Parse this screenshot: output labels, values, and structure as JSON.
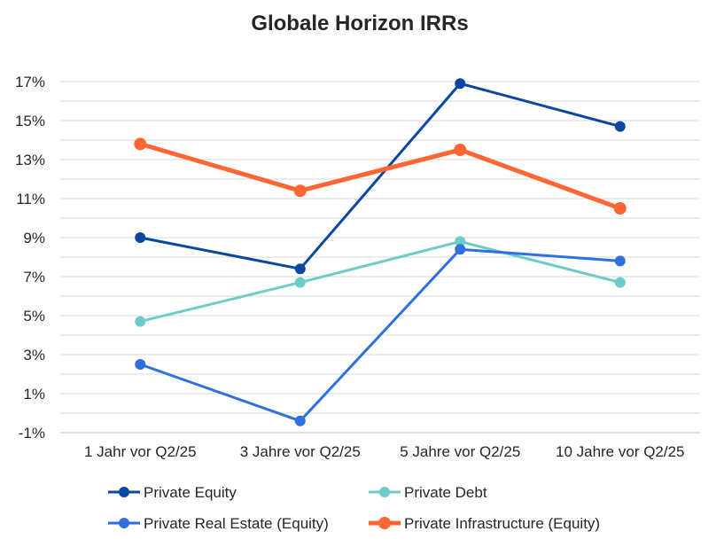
{
  "chart_data": {
    "type": "line",
    "title": "Globale Horizon IRRs",
    "xlabel": "",
    "ylabel": "",
    "categories": [
      "1 Jahr vor Q2/25",
      "3 Jahre vor Q2/25",
      "5 Jahre vor Q2/25",
      "10 Jahre vor Q2/25"
    ],
    "ylim": [
      -1,
      18
    ],
    "y_ticks": [
      -1,
      1,
      3,
      5,
      7,
      9,
      11,
      13,
      15,
      17
    ],
    "y_tick_labels": [
      "-1%",
      "1%",
      "3%",
      "5%",
      "7%",
      "9%",
      "11%",
      "13%",
      "15%",
      "17%"
    ],
    "grid": true,
    "legend_position": "bottom",
    "series": [
      {
        "name": "Private Equity",
        "values": [
          9.0,
          7.4,
          16.9,
          14.7
        ],
        "color": "#0a47a1",
        "stroke": 3,
        "marker": 6
      },
      {
        "name": "Private Debt",
        "values": [
          4.7,
          6.7,
          8.8,
          6.7
        ],
        "color": "#6ccdc8",
        "stroke": 3,
        "marker": 6
      },
      {
        "name": "Private Real Estate (Equity)",
        "values": [
          2.5,
          -0.4,
          8.4,
          7.8
        ],
        "color": "#2f6fe0",
        "stroke": 3,
        "marker": 6
      },
      {
        "name": "Private Infrastructure (Equity)",
        "values": [
          13.8,
          11.4,
          13.5,
          10.5
        ],
        "color": "#ff6633",
        "stroke": 5,
        "marker": 7
      }
    ]
  }
}
